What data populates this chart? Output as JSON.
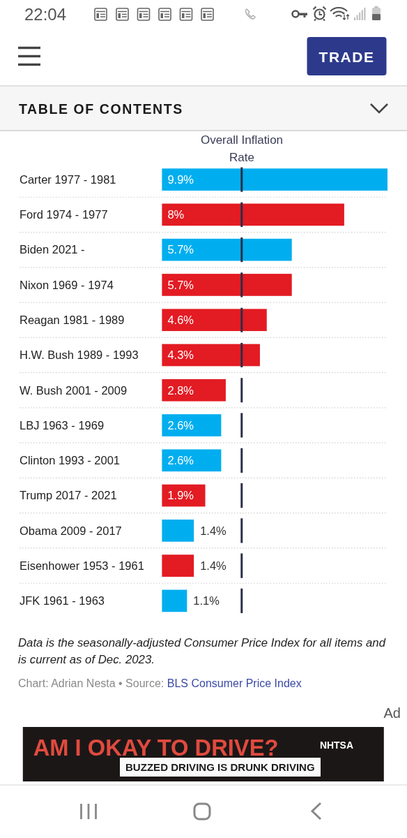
{
  "chart_data": {
    "type": "bar",
    "orientation": "horizontal",
    "title": "Overall Inflation Rate",
    "categories": [
      "Carter 1977 - 1981",
      "Ford 1974 - 1977",
      "Biden 2021 -",
      "Nixon 1969 - 1974",
      "Reagan 1981 - 1989",
      "H.W. Bush 1989 - 1993",
      "W. Bush 2001 - 2009",
      "LBJ 1963 - 1969",
      "Clinton 1993 - 2001",
      "Trump 2017 - 2021",
      "Obama 2009 - 2017",
      "Eisenhower 1953 - 1961",
      "JFK 1961 - 1963"
    ],
    "values": [
      9.9,
      8,
      5.7,
      5.7,
      4.6,
      4.3,
      2.8,
      2.6,
      2.6,
      1.9,
      1.4,
      1.4,
      1.1
    ],
    "colors": [
      "#00aeef",
      "#e31b23",
      "#00aeef",
      "#e31b23",
      "#e31b23",
      "#e31b23",
      "#e31b23",
      "#00aeef",
      "#00aeef",
      "#e31b23",
      "#00aeef",
      "#e31b23",
      "#00aeef"
    ],
    "value_labels": [
      "9.9%",
      "8%",
      "5.7%",
      "5.7%",
      "4.6%",
      "4.3%",
      "2.8%",
      "2.6%",
      "2.6%",
      "1.9%",
      "1.4%",
      "1.4%",
      "1.1%"
    ],
    "xlim": [
      0,
      9.9
    ],
    "tick_labels": "y",
    "ref_lines": [
      {
        "axis": "x",
        "value": 3.5,
        "color": "#2b2e45",
        "line_style": "dashed"
      }
    ],
    "annotations": [
      "Data is the seasonally-adjusted Consumer Price Index for all items and is current as of Dec. 2023.",
      "Chart: Adrian Nesta • Source:",
      "BLS Consumer Price Index",
      "22:04",
      "TRADE",
      "TABLE OF CONTENTS",
      "Ad",
      "AM I OKAY TO DRIVE?",
      "BUZZED DRIVING IS DRUNK DRIVING",
      "NHTSA"
    ]
  }
}
